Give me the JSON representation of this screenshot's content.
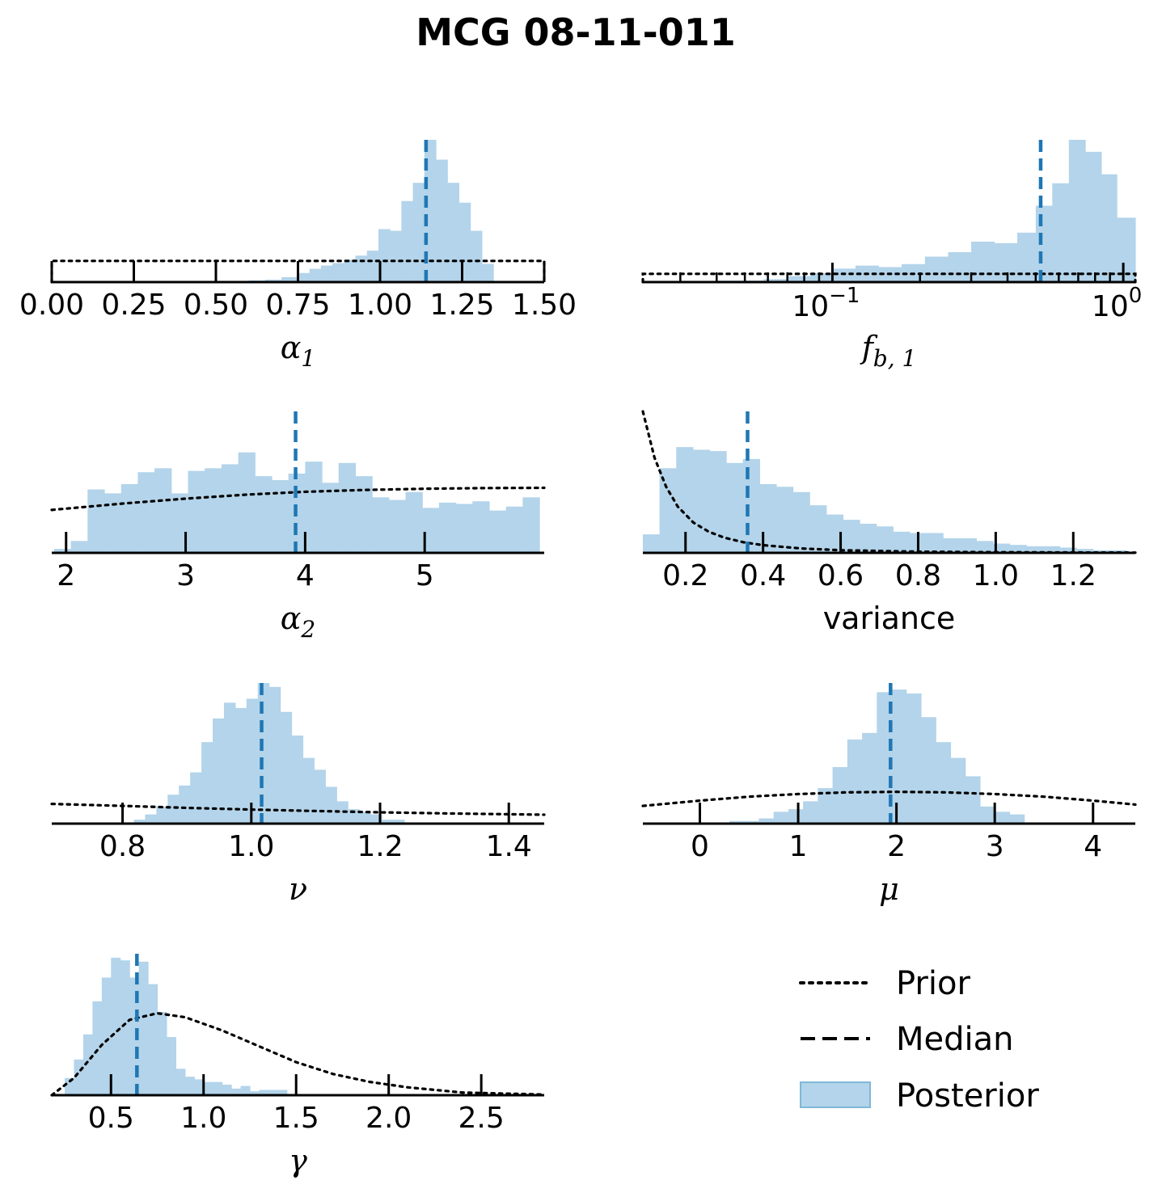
{
  "title": "MCG 08-11-011",
  "colors": {
    "posterior": "#b3d4ea",
    "median": "#1f77b4",
    "prior": "#000000",
    "legend_patch_edge": "#7fb8d8"
  },
  "legend": {
    "prior": "Prior",
    "median": "Median",
    "posterior": "Posterior"
  },
  "chart_data": [
    {
      "id": "alpha1",
      "type": "histogram",
      "xlabel": "α",
      "xlabel_sub": "1",
      "xscale": "linear",
      "xlim": [
        0.0,
        1.5
      ],
      "ylim": [
        0,
        8.6
      ],
      "tick_values": [
        0.0,
        0.25,
        0.5,
        0.75,
        1.0,
        1.25,
        1.5
      ],
      "tick_labels": [
        "0.00",
        "0.25",
        "0.50",
        "0.75",
        "1.00",
        "1.25",
        "1.50"
      ],
      "median": 1.14,
      "bin_edges": [
        0.5,
        0.55,
        0.6,
        0.65,
        0.7,
        0.75,
        0.785,
        0.82,
        0.855,
        0.89,
        0.925,
        0.96,
        0.995,
        1.03,
        1.065,
        1.1,
        1.135,
        1.17,
        1.205,
        1.24,
        1.275,
        1.31,
        1.345,
        1.38
      ],
      "counts": [
        0.05,
        0.05,
        0.1,
        0.15,
        0.3,
        0.55,
        0.8,
        1.0,
        1.15,
        1.35,
        1.6,
        1.9,
        3.2,
        3.1,
        4.9,
        6.0,
        8.6,
        7.4,
        6.0,
        4.8,
        3.1,
        1.1,
        0.05
      ],
      "prior": {
        "kind": "uniform",
        "x_range": [
          0.0,
          1.5
        ],
        "level": 1.28
      }
    },
    {
      "id": "fb1",
      "type": "histogram",
      "xlabel": "f",
      "xlabel_sub": "b, 1",
      "xscale": "log",
      "xlim": [
        0.0223,
        1.1
      ],
      "ylim": [
        0,
        9.5
      ],
      "major_ticks": [
        0.1,
        1.0
      ],
      "major_tick_labels": [
        "10",
        "10"
      ],
      "major_tick_exponents": [
        "−1",
        "0"
      ],
      "minor_ticks": [
        0.03,
        0.04,
        0.05,
        0.06,
        0.07,
        0.08,
        0.09,
        0.2,
        0.3,
        0.4,
        0.5,
        0.6,
        0.7,
        0.8,
        0.9
      ],
      "median": 0.52,
      "bin_edges": [
        0.04,
        0.048,
        0.058,
        0.07,
        0.084,
        0.1,
        0.12,
        0.144,
        0.173,
        0.208,
        0.25,
        0.3,
        0.36,
        0.432,
        0.5,
        0.57,
        0.65,
        0.74,
        0.84,
        0.95,
        1.1
      ],
      "counts": [
        0.1,
        0.1,
        0.2,
        0.4,
        0.6,
        0.9,
        1.1,
        1.0,
        1.2,
        1.7,
        2.0,
        2.7,
        2.6,
        3.3,
        5.1,
        6.6,
        9.5,
        8.7,
        7.2,
        4.3,
        1.2
      ],
      "prior": {
        "kind": "loguniform",
        "x_range": [
          0.0223,
          1.1
        ],
        "level": 0.55
      }
    },
    {
      "id": "alpha2",
      "type": "histogram",
      "xlabel": "α",
      "xlabel_sub": "2",
      "xscale": "linear",
      "xlim": [
        1.88,
        6.0
      ],
      "ylim": [
        0,
        10.7
      ],
      "tick_values": [
        2,
        3,
        4,
        5
      ],
      "tick_labels": [
        "2",
        "3",
        "4",
        "5"
      ],
      "median": 3.92,
      "bin_edges": [
        1.9,
        2.04,
        2.18,
        2.32,
        2.46,
        2.6,
        2.74,
        2.88,
        3.02,
        3.16,
        3.3,
        3.44,
        3.58,
        3.72,
        3.86,
        4.0,
        4.14,
        4.28,
        4.42,
        4.56,
        4.7,
        4.84,
        4.98,
        5.12,
        5.26,
        5.4,
        5.54,
        5.68,
        5.82,
        5.96
      ],
      "counts": [
        0.3,
        0.9,
        4.8,
        4.5,
        5.2,
        6.1,
        6.4,
        4.5,
        6.2,
        6.4,
        6.7,
        7.6,
        5.8,
        5.5,
        6.0,
        6.9,
        5.3,
        6.8,
        5.8,
        4.2,
        4.0,
        4.6,
        3.4,
        3.8,
        3.7,
        3.9,
        3.2,
        3.5,
        4.2,
        3.3
      ],
      "prior": {
        "kind": "curve",
        "x": [
          1.88,
          2.5,
          3.0,
          3.5,
          4.0,
          4.5,
          5.0,
          5.5,
          6.0
        ],
        "y": [
          3.25,
          3.75,
          4.1,
          4.4,
          4.62,
          4.76,
          4.85,
          4.9,
          4.92
        ]
      }
    },
    {
      "id": "variance",
      "type": "histogram",
      "xlabel": "variance",
      "xlabel_sub": "",
      "xscale": "linear",
      "xlim": [
        0.09,
        1.36
      ],
      "ylim": [
        0,
        10.7
      ],
      "tick_values": [
        0.2,
        0.4,
        0.6,
        0.8,
        1.0,
        1.2
      ],
      "tick_labels": [
        "0.2",
        "0.4",
        "0.6",
        "0.8",
        "1.0",
        "1.2"
      ],
      "median": 0.36,
      "bin_edges": [
        0.09,
        0.133,
        0.176,
        0.219,
        0.262,
        0.305,
        0.348,
        0.391,
        0.434,
        0.477,
        0.52,
        0.563,
        0.606,
        0.649,
        0.692,
        0.735,
        0.778,
        0.821,
        0.864,
        0.907,
        0.95,
        0.993,
        1.036,
        1.079,
        1.122,
        1.165,
        1.208,
        1.251,
        1.294,
        1.337
      ],
      "counts": [
        1.4,
        6.4,
        8.0,
        7.8,
        7.7,
        6.8,
        7.1,
        5.2,
        5.0,
        4.6,
        3.6,
        2.9,
        2.5,
        2.2,
        2.0,
        1.6,
        1.5,
        1.5,
        1.1,
        1.1,
        0.9,
        0.7,
        0.6,
        0.5,
        0.5,
        0.4,
        0.3,
        0.2,
        0.2,
        0.1
      ],
      "prior": {
        "kind": "curve",
        "x": [
          0.09,
          0.12,
          0.15,
          0.18,
          0.22,
          0.26,
          0.3,
          0.35,
          0.4,
          0.5,
          0.6,
          0.8,
          1.0,
          1.2,
          1.36
        ],
        "y": [
          10.7,
          7.2,
          5.0,
          3.5,
          2.3,
          1.6,
          1.15,
          0.8,
          0.58,
          0.33,
          0.2,
          0.09,
          0.05,
          0.03,
          0.02
        ]
      }
    },
    {
      "id": "nu",
      "type": "histogram",
      "xlabel": "ν",
      "xlabel_sub": "",
      "xscale": "linear",
      "xlim": [
        0.69,
        1.455
      ],
      "ylim": [
        0,
        10.7
      ],
      "tick_values": [
        0.8,
        1.0,
        1.2,
        1.4
      ],
      "tick_labels": [
        "0.8",
        "1.0",
        "1.2",
        "1.4"
      ],
      "median": 1.016,
      "bin_edges": [
        0.8,
        0.8175,
        0.835,
        0.8525,
        0.87,
        0.8875,
        0.905,
        0.9225,
        0.94,
        0.9575,
        0.975,
        0.9925,
        1.01,
        1.0275,
        1.045,
        1.0625,
        1.08,
        1.0975,
        1.115,
        1.1325,
        1.15,
        1.1675,
        1.185,
        1.2025,
        1.22,
        1.2375
      ],
      "counts": [
        0.1,
        0.3,
        0.7,
        1.3,
        2.2,
        2.9,
        3.9,
        6.2,
        8.0,
        9.2,
        8.8,
        9.5,
        10.7,
        10.4,
        8.5,
        6.7,
        5.0,
        4.1,
        2.8,
        1.7,
        1.1,
        0.9,
        0.7,
        0.3,
        0.3
      ],
      "prior": {
        "kind": "curve",
        "x": [
          0.69,
          0.8,
          0.9,
          1.0,
          1.1,
          1.2,
          1.3,
          1.455
        ],
        "y": [
          1.5,
          1.35,
          1.2,
          1.07,
          0.96,
          0.86,
          0.78,
          0.68
        ]
      }
    },
    {
      "id": "mu",
      "type": "histogram",
      "xlabel": "μ",
      "xlabel_sub": "",
      "xscale": "linear",
      "xlim": [
        -0.58,
        4.43
      ],
      "ylim": [
        0,
        10.7
      ],
      "tick_values": [
        0,
        1,
        2,
        3,
        4
      ],
      "tick_labels": [
        "0",
        "1",
        "2",
        "3",
        "4"
      ],
      "median": 1.94,
      "bin_edges": [
        0.3,
        0.45,
        0.6,
        0.75,
        0.9,
        1.05,
        1.2,
        1.35,
        1.5,
        1.65,
        1.8,
        1.95,
        2.1,
        2.25,
        2.4,
        2.55,
        2.7,
        2.85,
        3.0,
        3.15,
        3.3
      ],
      "counts": [
        0.2,
        0.2,
        0.4,
        0.9,
        1.1,
        1.7,
        2.7,
        4.3,
        6.4,
        6.9,
        10.0,
        10.2,
        9.9,
        8.1,
        6.2,
        5.0,
        3.6,
        1.3,
        0.9,
        0.7
      ],
      "prior": {
        "kind": "curve",
        "x": [
          -0.58,
          0.0,
          0.5,
          1.0,
          1.5,
          2.0,
          2.5,
          3.0,
          3.5,
          4.0,
          4.43
        ],
        "y": [
          1.35,
          1.75,
          2.05,
          2.25,
          2.38,
          2.42,
          2.38,
          2.25,
          2.05,
          1.75,
          1.45
        ]
      }
    },
    {
      "id": "gamma",
      "type": "histogram",
      "xlabel": "γ",
      "xlabel_sub": "",
      "xscale": "linear",
      "xlim": [
        0.18,
        2.84
      ],
      "ylim": [
        0,
        10.7
      ],
      "tick_values": [
        0.5,
        1.0,
        1.5,
        2.0,
        2.5
      ],
      "tick_labels": [
        "0.5",
        "1.0",
        "1.5",
        "2.0",
        "2.5"
      ],
      "median": 0.64,
      "bin_edges": [
        0.2,
        0.25,
        0.3,
        0.35,
        0.4,
        0.45,
        0.5,
        0.55,
        0.6,
        0.65,
        0.7,
        0.75,
        0.8,
        0.85,
        0.9,
        0.95,
        1.0,
        1.05,
        1.1,
        1.15,
        1.2,
        1.25,
        1.3,
        1.35,
        1.4,
        1.45,
        1.5
      ],
      "counts": [
        0.1,
        1.3,
        2.7,
        4.6,
        7.1,
        8.9,
        10.4,
        10.2,
        8.9,
        10.1,
        8.4,
        6.3,
        4.4,
        2.0,
        1.4,
        1.2,
        1.0,
        1.0,
        0.8,
        0.5,
        0.7,
        0.3,
        0.4,
        0.4,
        0.4,
        0.1
      ],
      "prior": {
        "kind": "curve",
        "x": [
          0.18,
          0.3,
          0.45,
          0.6,
          0.75,
          0.9,
          1.1,
          1.3,
          1.5,
          1.7,
          1.9,
          2.1,
          2.4,
          2.84
        ],
        "y": [
          0.0,
          1.3,
          3.8,
          5.7,
          6.2,
          5.9,
          4.9,
          3.7,
          2.5,
          1.6,
          1.0,
          0.6,
          0.2,
          0.05
        ]
      }
    }
  ]
}
